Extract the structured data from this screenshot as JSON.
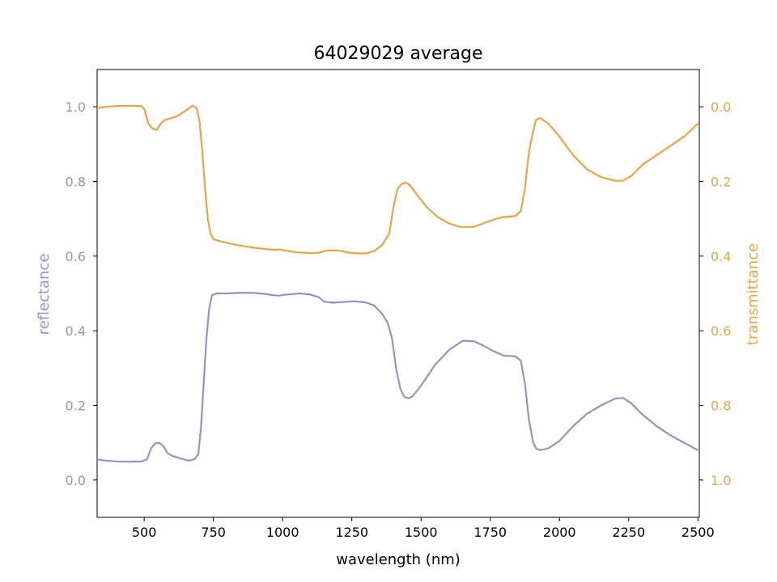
{
  "chart_data": {
    "type": "line",
    "title": "64029029 average",
    "xlabel": "wavelength (nm)",
    "ylabel_left": "reflectance",
    "ylabel_right": "transmittance",
    "xlim": [
      330,
      2505
    ],
    "ylim_left": [
      -0.1,
      1.1
    ],
    "ylim_right": [
      1.1,
      -0.1
    ],
    "x_ticks": [
      500,
      750,
      1000,
      1250,
      1500,
      1750,
      2000,
      2250,
      2500
    ],
    "y_left_ticks": [
      "0.0",
      "0.2",
      "0.4",
      "0.6",
      "0.8",
      "1.0"
    ],
    "y_right_ticks": [
      "0.0",
      "0.2",
      "0.4",
      "0.6",
      "0.8",
      "1.0"
    ],
    "grid": false,
    "colors": {
      "reflectance": "#9892c4",
      "transmittance": "#eca343"
    },
    "series": [
      {
        "axis": "left",
        "points": [
          [
            330,
            0.055
          ],
          [
            360,
            0.052
          ],
          [
            400,
            0.05
          ],
          [
            450,
            0.049
          ],
          [
            490,
            0.05
          ],
          [
            510,
            0.055
          ],
          [
            525,
            0.085
          ],
          [
            540,
            0.098
          ],
          [
            555,
            0.1
          ],
          [
            570,
            0.09
          ],
          [
            585,
            0.072
          ],
          [
            600,
            0.065
          ],
          [
            630,
            0.058
          ],
          [
            660,
            0.052
          ],
          [
            680,
            0.055
          ],
          [
            695,
            0.068
          ],
          [
            705,
            0.14
          ],
          [
            715,
            0.26
          ],
          [
            725,
            0.38
          ],
          [
            735,
            0.46
          ],
          [
            745,
            0.495
          ],
          [
            760,
            0.5
          ],
          [
            800,
            0.5
          ],
          [
            850,
            0.502
          ],
          [
            900,
            0.501
          ],
          [
            940,
            0.498
          ],
          [
            970,
            0.495
          ],
          [
            990,
            0.494
          ],
          [
            1000,
            0.496
          ],
          [
            1020,
            0.497
          ],
          [
            1060,
            0.5
          ],
          [
            1100,
            0.497
          ],
          [
            1130,
            0.49
          ],
          [
            1150,
            0.478
          ],
          [
            1180,
            0.475
          ],
          [
            1220,
            0.477
          ],
          [
            1260,
            0.479
          ],
          [
            1300,
            0.476
          ],
          [
            1330,
            0.468
          ],
          [
            1360,
            0.445
          ],
          [
            1380,
            0.42
          ],
          [
            1395,
            0.38
          ],
          [
            1410,
            0.3
          ],
          [
            1425,
            0.245
          ],
          [
            1440,
            0.222
          ],
          [
            1455,
            0.219
          ],
          [
            1470,
            0.225
          ],
          [
            1500,
            0.253
          ],
          [
            1550,
            0.308
          ],
          [
            1600,
            0.348
          ],
          [
            1650,
            0.373
          ],
          [
            1690,
            0.372
          ],
          [
            1720,
            0.362
          ],
          [
            1760,
            0.346
          ],
          [
            1800,
            0.333
          ],
          [
            1840,
            0.332
          ],
          [
            1860,
            0.32
          ],
          [
            1875,
            0.26
          ],
          [
            1890,
            0.16
          ],
          [
            1905,
            0.1
          ],
          [
            1915,
            0.085
          ],
          [
            1930,
            0.08
          ],
          [
            1960,
            0.085
          ],
          [
            2000,
            0.105
          ],
          [
            2050,
            0.145
          ],
          [
            2100,
            0.178
          ],
          [
            2150,
            0.2
          ],
          [
            2200,
            0.218
          ],
          [
            2230,
            0.22
          ],
          [
            2260,
            0.205
          ],
          [
            2300,
            0.175
          ],
          [
            2350,
            0.145
          ],
          [
            2400,
            0.12
          ],
          [
            2450,
            0.1
          ],
          [
            2500,
            0.08
          ]
        ]
      },
      {
        "axis": "right",
        "points": [
          [
            330,
            0.003
          ],
          [
            360,
            0.0
          ],
          [
            400,
            -0.002
          ],
          [
            450,
            -0.003
          ],
          [
            490,
            -0.002
          ],
          [
            500,
            0.005
          ],
          [
            515,
            0.045
          ],
          [
            530,
            0.058
          ],
          [
            545,
            0.062
          ],
          [
            560,
            0.045
          ],
          [
            575,
            0.035
          ],
          [
            590,
            0.032
          ],
          [
            620,
            0.025
          ],
          [
            650,
            0.01
          ],
          [
            675,
            -0.003
          ],
          [
            690,
            0.003
          ],
          [
            700,
            0.04
          ],
          [
            710,
            0.12
          ],
          [
            720,
            0.22
          ],
          [
            730,
            0.3
          ],
          [
            740,
            0.34
          ],
          [
            750,
            0.355
          ],
          [
            800,
            0.365
          ],
          [
            850,
            0.372
          ],
          [
            900,
            0.378
          ],
          [
            950,
            0.382
          ],
          [
            975,
            0.383
          ],
          [
            990,
            0.382
          ],
          [
            1000,
            0.384
          ],
          [
            1050,
            0.39
          ],
          [
            1100,
            0.392
          ],
          [
            1130,
            0.391
          ],
          [
            1160,
            0.385
          ],
          [
            1200,
            0.385
          ],
          [
            1250,
            0.392
          ],
          [
            1300,
            0.393
          ],
          [
            1330,
            0.387
          ],
          [
            1360,
            0.37
          ],
          [
            1385,
            0.34
          ],
          [
            1400,
            0.27
          ],
          [
            1415,
            0.22
          ],
          [
            1430,
            0.207
          ],
          [
            1445,
            0.203
          ],
          [
            1460,
            0.21
          ],
          [
            1490,
            0.24
          ],
          [
            1520,
            0.268
          ],
          [
            1560,
            0.295
          ],
          [
            1600,
            0.312
          ],
          [
            1640,
            0.322
          ],
          [
            1690,
            0.322
          ],
          [
            1740,
            0.308
          ],
          [
            1770,
            0.3
          ],
          [
            1800,
            0.295
          ],
          [
            1840,
            0.293
          ],
          [
            1860,
            0.28
          ],
          [
            1875,
            0.22
          ],
          [
            1890,
            0.12
          ],
          [
            1905,
            0.065
          ],
          [
            1915,
            0.035
          ],
          [
            1930,
            0.03
          ],
          [
            1960,
            0.045
          ],
          [
            2000,
            0.08
          ],
          [
            2050,
            0.13
          ],
          [
            2100,
            0.168
          ],
          [
            2150,
            0.188
          ],
          [
            2200,
            0.198
          ],
          [
            2230,
            0.198
          ],
          [
            2260,
            0.185
          ],
          [
            2300,
            0.155
          ],
          [
            2350,
            0.13
          ],
          [
            2400,
            0.105
          ],
          [
            2450,
            0.08
          ],
          [
            2500,
            0.045
          ]
        ]
      }
    ]
  }
}
